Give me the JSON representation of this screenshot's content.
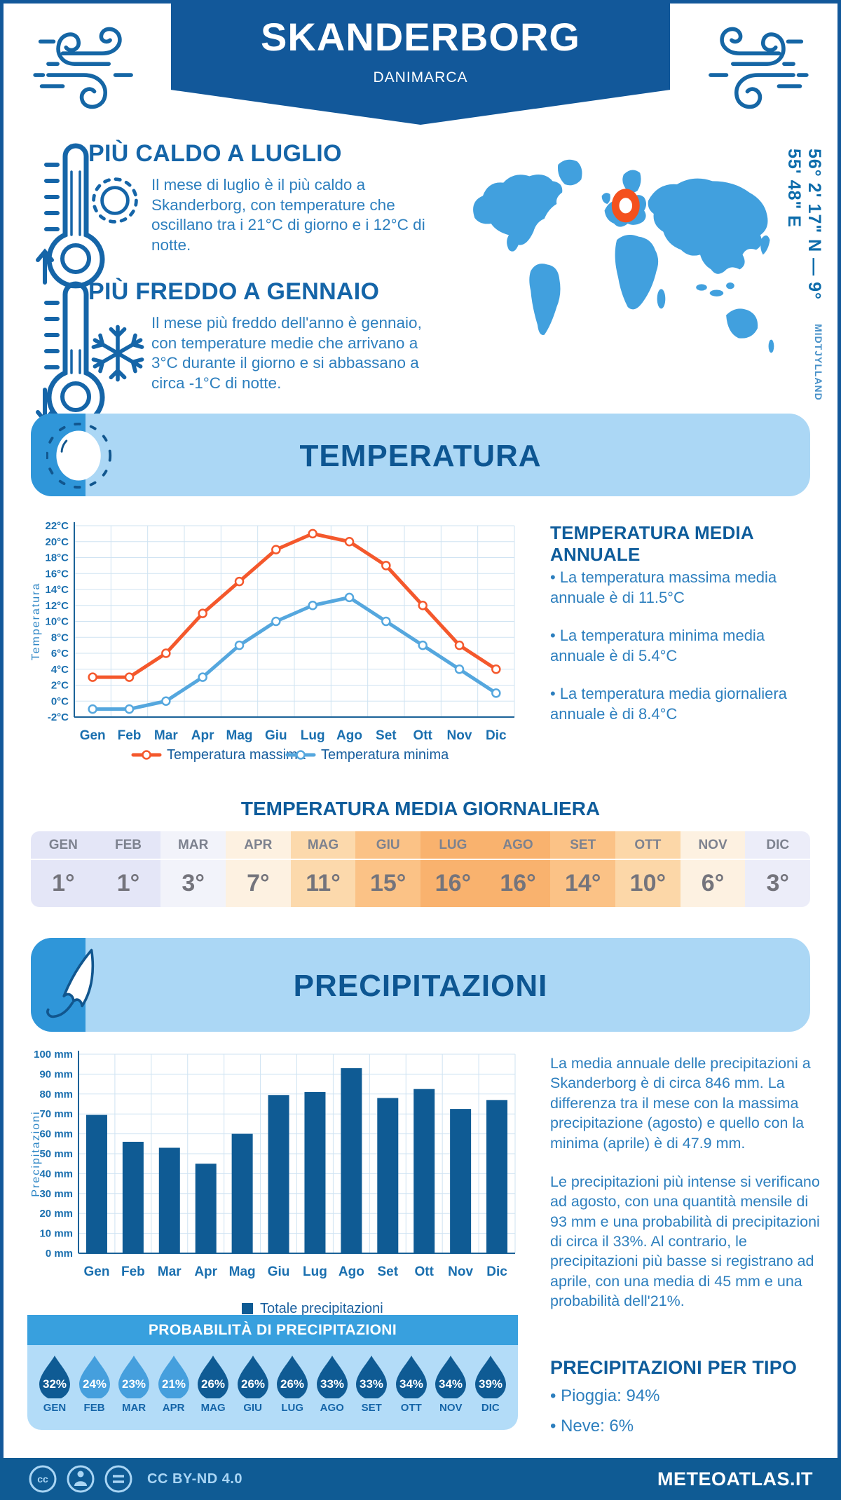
{
  "header": {
    "title": "SKANDERBORG",
    "subtitle": "DANIMARCA"
  },
  "highlights": {
    "hot": {
      "title": "PIÙ CALDO A LUGLIO",
      "text": "Il mese di luglio è il più caldo a Skanderborg, con temperature che oscillano tra i 21°C di giorno e i 12°C di notte."
    },
    "cold": {
      "title": "PIÙ FREDDO A GENNAIO",
      "text": "Il mese più freddo dell'anno è gennaio, con temperature medie che arrivano a 3°C durante il giorno e si abbassano a circa -1°C di notte."
    }
  },
  "map": {
    "coordinates": "56° 2' 17\" N — 9° 55' 48\" E",
    "region": "MIDTJYLLAND"
  },
  "sections": {
    "temperature": "TEMPERATURA",
    "precipitation": "PRECIPITAZIONI"
  },
  "temperature": {
    "annual": {
      "heading": "TEMPERATURA MEDIA ANNUALE",
      "bullets": [
        "• La temperatura massima media annuale è di 11.5°C",
        "• La temperatura minima media annuale è di 5.4°C",
        "• La temperatura media giornaliera annuale è di 8.4°C"
      ]
    },
    "daily_table": {
      "heading": "TEMPERATURA MEDIA GIORNALIERA",
      "months": [
        {
          "label": "GEN",
          "value": "1°",
          "bg": "#e4e6f7"
        },
        {
          "label": "FEB",
          "value": "1°",
          "bg": "#e4e6f7"
        },
        {
          "label": "MAR",
          "value": "3°",
          "bg": "#f2f3fa"
        },
        {
          "label": "APR",
          "value": "7°",
          "bg": "#fdf1e1"
        },
        {
          "label": "MAG",
          "value": "11°",
          "bg": "#fcd9ac"
        },
        {
          "label": "GIU",
          "value": "15°",
          "bg": "#fbc286"
        },
        {
          "label": "LUG",
          "value": "16°",
          "bg": "#f9b26e"
        },
        {
          "label": "AGO",
          "value": "16°",
          "bg": "#f9b26e"
        },
        {
          "label": "SET",
          "value": "14°",
          "bg": "#fbc286"
        },
        {
          "label": "OTT",
          "value": "10°",
          "bg": "#fcd7a8"
        },
        {
          "label": "NOV",
          "value": "6°",
          "bg": "#fdf1e1"
        },
        {
          "label": "DIC",
          "value": "3°",
          "bg": "#ecedf9"
        }
      ]
    }
  },
  "precipitation": {
    "paragraphs": [
      "La media annuale delle precipitazioni a Skanderborg è di circa 846 mm. La differenza tra il mese con la massima precipitazione (agosto) e quello con la minima (aprile) è di 47.9 mm.",
      "Le precipitazioni più intense si verificano ad agosto, con una quantità mensile di 93 mm e una probabilità di precipitazioni di circa il 33%. Al contrario, le precipitazioni più basse si registrano ad aprile, con una media di 45 mm e una probabilità dell'21%."
    ],
    "probability": {
      "heading": "PROBABILITÀ DI PRECIPITAZIONI",
      "items": [
        {
          "month": "GEN",
          "value": "32%",
          "tone": "dark"
        },
        {
          "month": "FEB",
          "value": "24%",
          "tone": "light"
        },
        {
          "month": "MAR",
          "value": "23%",
          "tone": "light"
        },
        {
          "month": "APR",
          "value": "21%",
          "tone": "light"
        },
        {
          "month": "MAG",
          "value": "26%",
          "tone": "dark"
        },
        {
          "month": "GIU",
          "value": "26%",
          "tone": "dark"
        },
        {
          "month": "LUG",
          "value": "26%",
          "tone": "dark"
        },
        {
          "month": "AGO",
          "value": "33%",
          "tone": "dark"
        },
        {
          "month": "SET",
          "value": "33%",
          "tone": "dark"
        },
        {
          "month": "OTT",
          "value": "34%",
          "tone": "dark"
        },
        {
          "month": "NOV",
          "value": "34%",
          "tone": "dark"
        },
        {
          "month": "DIC",
          "value": "39%",
          "tone": "dark"
        }
      ]
    },
    "by_type": {
      "heading": "PRECIPITAZIONI PER TIPO",
      "bullets": [
        "• Pioggia: 94%",
        "• Neve: 6%"
      ]
    }
  },
  "footer": {
    "license": "CC BY-ND 4.0",
    "brand": "METEOATLAS.IT"
  },
  "colors": {
    "dark_blue": "#12589a",
    "bar_blue": "#0f5b94",
    "heading_blue": "#1565a8",
    "body_blue": "#2d7fbe",
    "light_banner": "#abd7f5",
    "mid_blue": "#2f96d9",
    "grid": "#cfe3f2",
    "axis": "#1a6298",
    "tick_text": "#1a6faf",
    "line_max": "#f4582c",
    "line_min": "#55a7de",
    "droplet_dark": "#0f5b94",
    "droplet_light": "#459fdd",
    "map_land": "#41a0de",
    "marker": "#f4511e"
  },
  "chart_data": [
    {
      "type": "line",
      "x": [
        "Gen",
        "Feb",
        "Mar",
        "Apr",
        "Mag",
        "Giu",
        "Lug",
        "Ago",
        "Set",
        "Ott",
        "Nov",
        "Dic"
      ],
      "ylabel": "Temperatura",
      "ylim": [
        -2,
        22
      ],
      "ytick_step": 2,
      "ytick_suffix": "°C",
      "grid": true,
      "legend_position": "bottom",
      "series": [
        {
          "name": "Temperatura massima",
          "color": "#f4582c",
          "values": [
            3,
            3,
            6,
            11,
            15,
            19,
            21,
            20,
            17,
            12,
            7,
            4
          ]
        },
        {
          "name": "Temperatura minima",
          "color": "#55a7de",
          "values": [
            -1,
            -1,
            0,
            3,
            7,
            10,
            12,
            13,
            10,
            7,
            4,
            1
          ]
        }
      ]
    },
    {
      "type": "bar",
      "categories": [
        "Gen",
        "Feb",
        "Mar",
        "Apr",
        "Mag",
        "Giu",
        "Lug",
        "Ago",
        "Set",
        "Ott",
        "Nov",
        "Dic"
      ],
      "values": [
        69.5,
        56,
        53,
        45,
        60,
        79.5,
        81,
        93,
        78,
        82.5,
        72.5,
        77
      ],
      "series_name": "Totale precipitazioni",
      "ylabel": "Precipitazioni",
      "ylim": [
        0,
        100
      ],
      "ytick_step": 10,
      "ytick_suffix": " mm",
      "grid": true,
      "bar_color": "#0f5b94",
      "legend_position": "bottom"
    }
  ]
}
